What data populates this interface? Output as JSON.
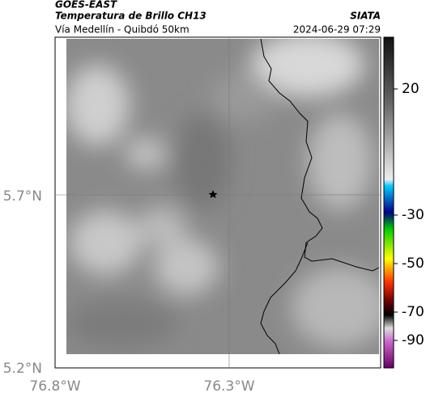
{
  "header": {
    "satellite": "GOES-EAST",
    "product": "Temperatura de Brillo CH13",
    "route": "Vía Medellín - Quibdó 50km",
    "source": "SIATA",
    "timestamp": "2024-06-29 07:29"
  },
  "axes": {
    "lat_labels": [
      "5.7°N",
      "5.2°N"
    ],
    "lon_labels": [
      "76.8°W",
      "76.3°W"
    ]
  },
  "colorbar": {
    "labels": [
      "20",
      "-30",
      "-50",
      "-70",
      "-90"
    ]
  }
}
